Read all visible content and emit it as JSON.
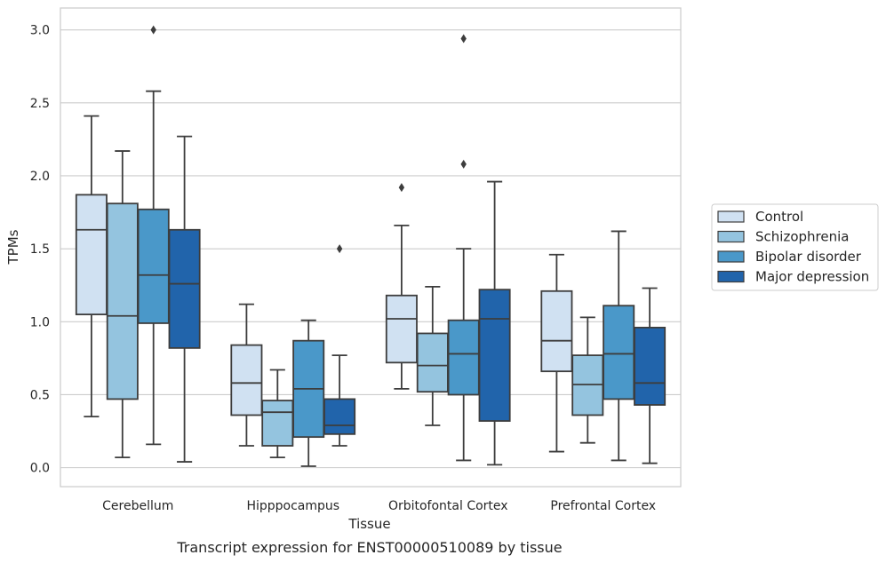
{
  "caption": "Transcript expression for ENST00000510089 by tissue",
  "chart_data": {
    "type": "box",
    "xlabel": "Tissue",
    "ylabel": "TPMs",
    "ylim": [
      -0.13,
      3.15
    ],
    "yticks": [
      0.0,
      0.5,
      1.0,
      1.5,
      2.0,
      2.5,
      3.0
    ],
    "ytick_labels": [
      "0.0",
      "0.5",
      "1.0",
      "1.5",
      "2.0",
      "2.5",
      "3.0"
    ],
    "grid": "horizontal",
    "legend_position": "right",
    "categories": [
      "Cerebellum",
      "Hipppocampus",
      "Orbitofontal Cortex",
      "Prefrontal Cortex"
    ],
    "series": [
      {
        "name": "Control",
        "color": "#d0e1f2",
        "boxes": [
          {
            "whislo": 0.35,
            "q1": 1.05,
            "med": 1.63,
            "q3": 1.87,
            "whishi": 2.41,
            "fliers": []
          },
          {
            "whislo": 0.15,
            "q1": 0.36,
            "med": 0.58,
            "q3": 0.84,
            "whishi": 1.12,
            "fliers": []
          },
          {
            "whislo": 0.54,
            "q1": 0.72,
            "med": 1.02,
            "q3": 1.18,
            "whishi": 1.66,
            "fliers": [
              1.92
            ]
          },
          {
            "whislo": 0.11,
            "q1": 0.66,
            "med": 0.87,
            "q3": 1.21,
            "whishi": 1.46,
            "fliers": []
          }
        ]
      },
      {
        "name": "Schizophrenia",
        "color": "#94c4df",
        "boxes": [
          {
            "whislo": 0.07,
            "q1": 0.47,
            "med": 1.04,
            "q3": 1.81,
            "whishi": 2.17,
            "fliers": []
          },
          {
            "whislo": 0.07,
            "q1": 0.15,
            "med": 0.38,
            "q3": 0.46,
            "whishi": 0.67,
            "fliers": []
          },
          {
            "whislo": 0.29,
            "q1": 0.52,
            "med": 0.7,
            "q3": 0.92,
            "whishi": 1.24,
            "fliers": []
          },
          {
            "whislo": 0.17,
            "q1": 0.36,
            "med": 0.57,
            "q3": 0.77,
            "whishi": 1.03,
            "fliers": []
          }
        ]
      },
      {
        "name": "Bipolar disorder",
        "color": "#4a98c9",
        "boxes": [
          {
            "whislo": 0.16,
            "q1": 0.99,
            "med": 1.32,
            "q3": 1.77,
            "whishi": 2.58,
            "fliers": [
              3.0
            ]
          },
          {
            "whislo": 0.01,
            "q1": 0.21,
            "med": 0.54,
            "q3": 0.87,
            "whishi": 1.01,
            "fliers": []
          },
          {
            "whislo": 0.05,
            "q1": 0.5,
            "med": 0.78,
            "q3": 1.01,
            "whishi": 1.5,
            "fliers": [
              2.08,
              2.94
            ]
          },
          {
            "whislo": 0.05,
            "q1": 0.47,
            "med": 0.78,
            "q3": 1.11,
            "whishi": 1.62,
            "fliers": []
          }
        ]
      },
      {
        "name": "Major depression",
        "color": "#2164ab",
        "boxes": [
          {
            "whislo": 0.04,
            "q1": 0.82,
            "med": 1.26,
            "q3": 1.63,
            "whishi": 2.27,
            "fliers": []
          },
          {
            "whislo": 0.15,
            "q1": 0.23,
            "med": 0.29,
            "q3": 0.47,
            "whishi": 0.77,
            "fliers": [
              1.5
            ]
          },
          {
            "whislo": 0.02,
            "q1": 0.32,
            "med": 1.02,
            "q3": 1.22,
            "whishi": 1.96,
            "fliers": []
          },
          {
            "whislo": 0.03,
            "q1": 0.43,
            "med": 0.58,
            "q3": 0.96,
            "whishi": 1.23,
            "fliers": []
          }
        ]
      }
    ]
  }
}
